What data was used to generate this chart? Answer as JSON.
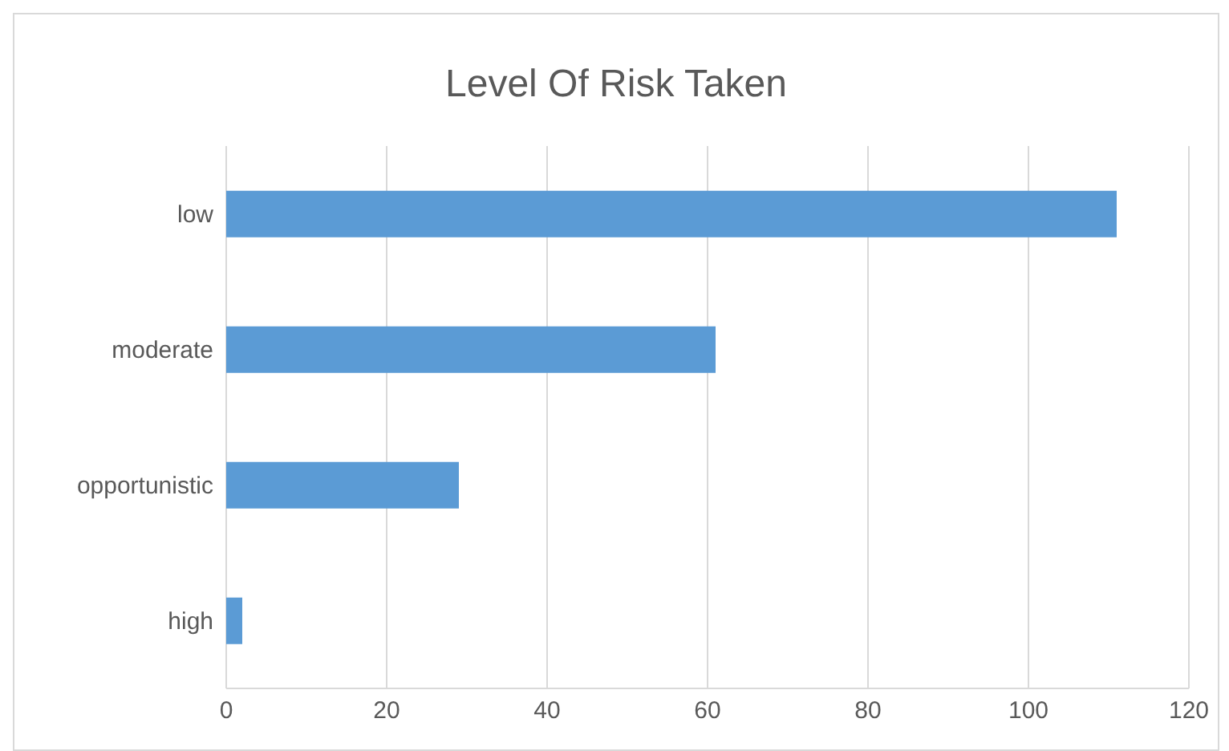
{
  "chart_data": {
    "type": "bar",
    "title": "Level Of Risk Taken",
    "orientation": "horizontal",
    "categories": [
      "low",
      "moderate",
      "opportunistic",
      "high"
    ],
    "values": [
      111,
      61,
      29,
      2
    ],
    "color": "#5b9bd5",
    "xlim": [
      0,
      120
    ],
    "xticks": [
      0,
      20,
      40,
      60,
      80,
      100,
      120
    ],
    "grid": "x"
  }
}
